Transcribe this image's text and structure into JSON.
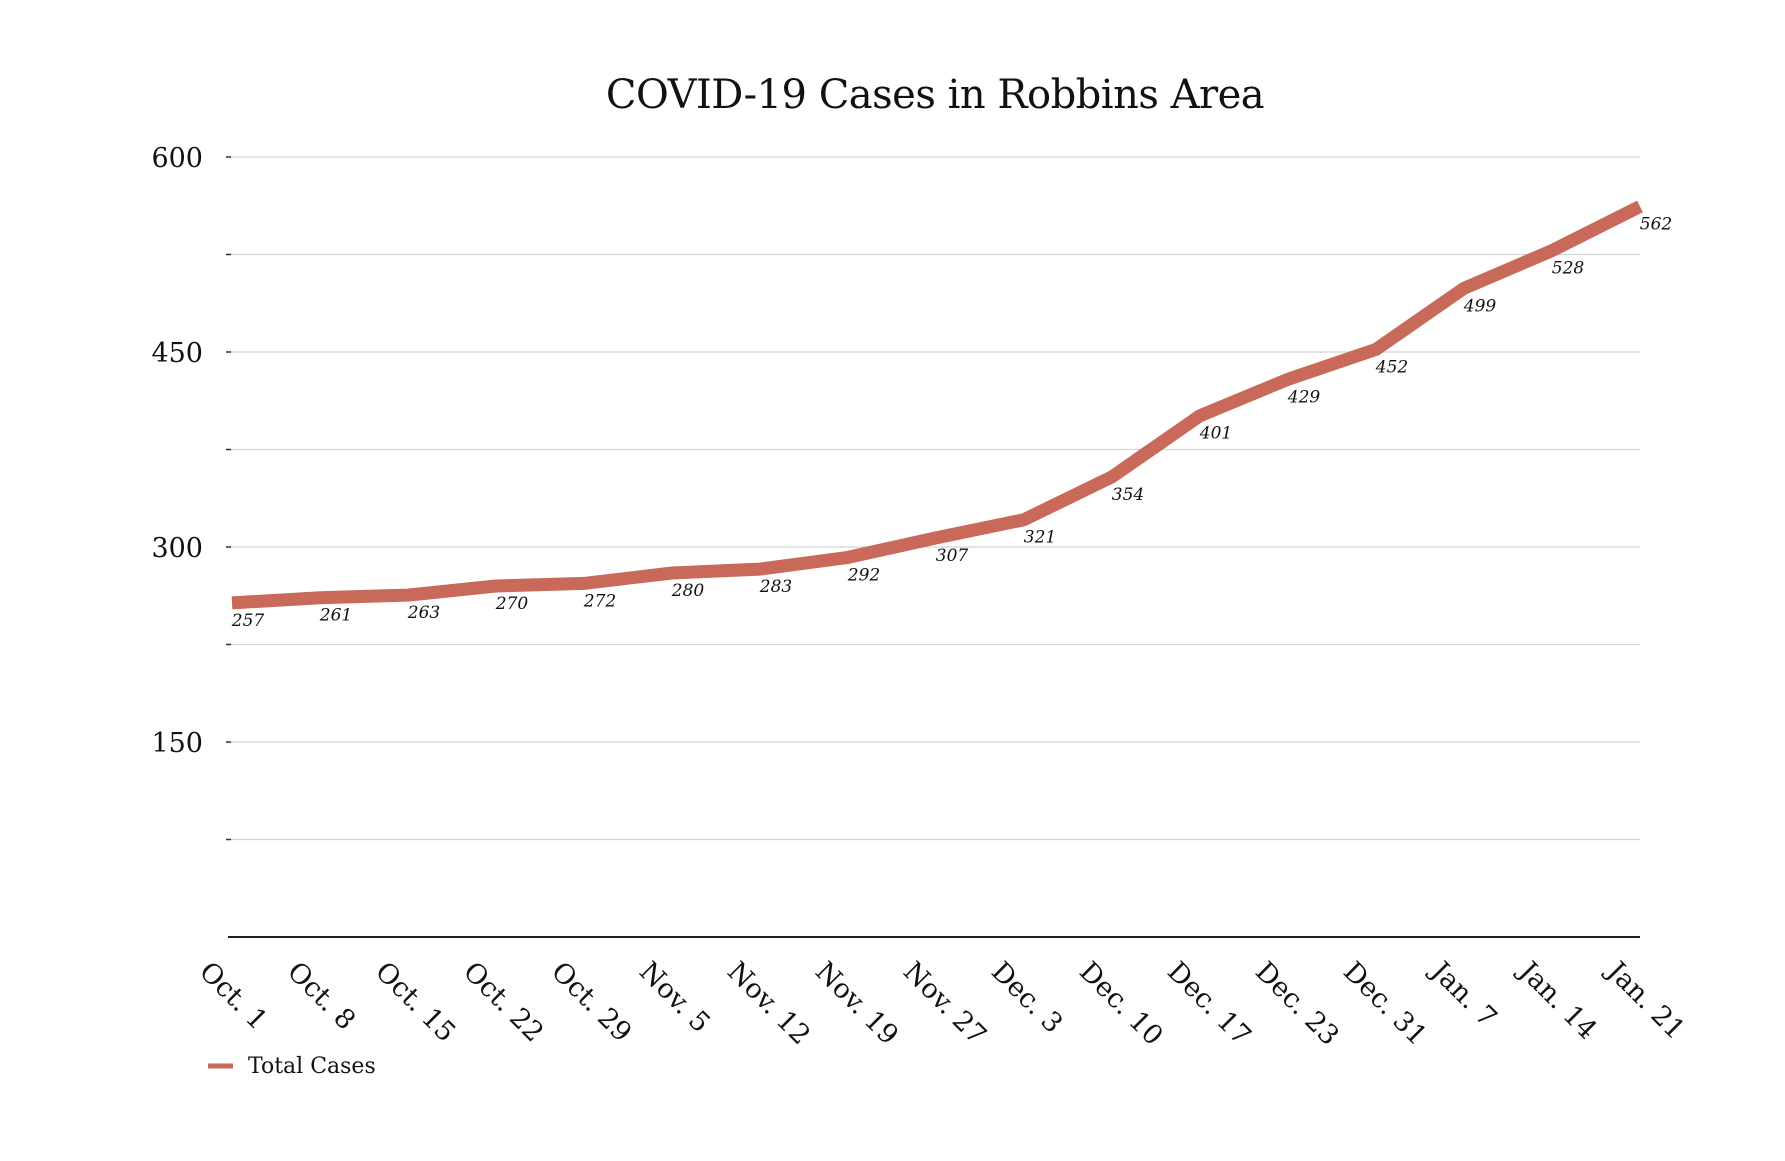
{
  "chart_data": {
    "type": "line",
    "title": "COVID-19 Cases in Robbins Area",
    "xlabel": "",
    "ylabel": "",
    "categories": [
      "Oct. 1",
      "Oct. 8",
      "Oct. 15",
      "Oct. 22",
      "Oct. 29",
      "Nov. 5",
      "Nov. 12",
      "Nov. 19",
      "Nov. 27",
      "Dec. 3",
      "Dec. 10",
      "Dec. 17",
      "Dec. 23",
      "Dec. 31",
      "Jan. 7",
      "Jan. 14",
      "Jan. 21"
    ],
    "series": [
      {
        "name": "Total Cases",
        "values": [
          257,
          261,
          263,
          270,
          272,
          280,
          283,
          292,
          307,
          321,
          354,
          401,
          429,
          452,
          499,
          528,
          562
        ],
        "color": "#c8695a"
      }
    ],
    "ylim": [
      0,
      600
    ],
    "y_ticks": [
      150,
      300,
      450,
      600
    ],
    "grid": true,
    "legend": "bottom-left",
    "data_labels": true
  }
}
